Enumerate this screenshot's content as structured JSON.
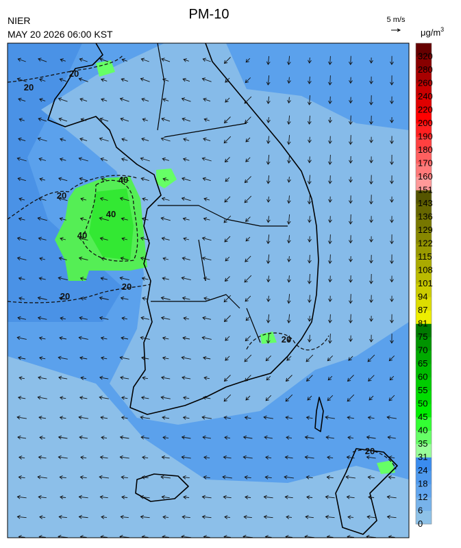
{
  "header": {
    "title": "PM-10",
    "source": "NIER",
    "datetime": "MAY 20 2026 06:00 KST"
  },
  "wind_scale": {
    "label": "5 m/s"
  },
  "colorbar": {
    "unit": {
      "base": "μg/m",
      "exponent": "3"
    },
    "ticks": [
      0,
      6,
      12,
      18,
      24,
      31,
      35,
      40,
      45,
      50,
      55,
      60,
      65,
      70,
      75,
      81,
      87,
      94,
      101,
      108,
      115,
      122,
      129,
      136,
      143,
      151,
      160,
      170,
      180,
      190,
      200,
      220,
      240,
      260,
      280,
      320
    ],
    "colors": [
      "#8ec2e8",
      "#77b3ea",
      "#62a6ee",
      "#4f9aee",
      "#3a8cef",
      "#99ff99",
      "#66ff66",
      "#33ff33",
      "#00ee00",
      "#00dd00",
      "#00cc00",
      "#00bb00",
      "#00aa00",
      "#009400",
      "#007a00",
      "#eeee00",
      "#dddd00",
      "#cccc00",
      "#bbbb00",
      "#aaaa00",
      "#999900",
      "#888800",
      "#777700",
      "#666600",
      "#555500",
      "#ff9999",
      "#ff7a7a",
      "#ff6060",
      "#ff4040",
      "#ff2020",
      "#ff0000",
      "#e00000",
      "#c80000",
      "#a80000",
      "#880000",
      "#660000"
    ]
  },
  "map": {
    "contour_labels": [
      20,
      20,
      20,
      20,
      20,
      20,
      20,
      40,
      40,
      40
    ]
  }
}
